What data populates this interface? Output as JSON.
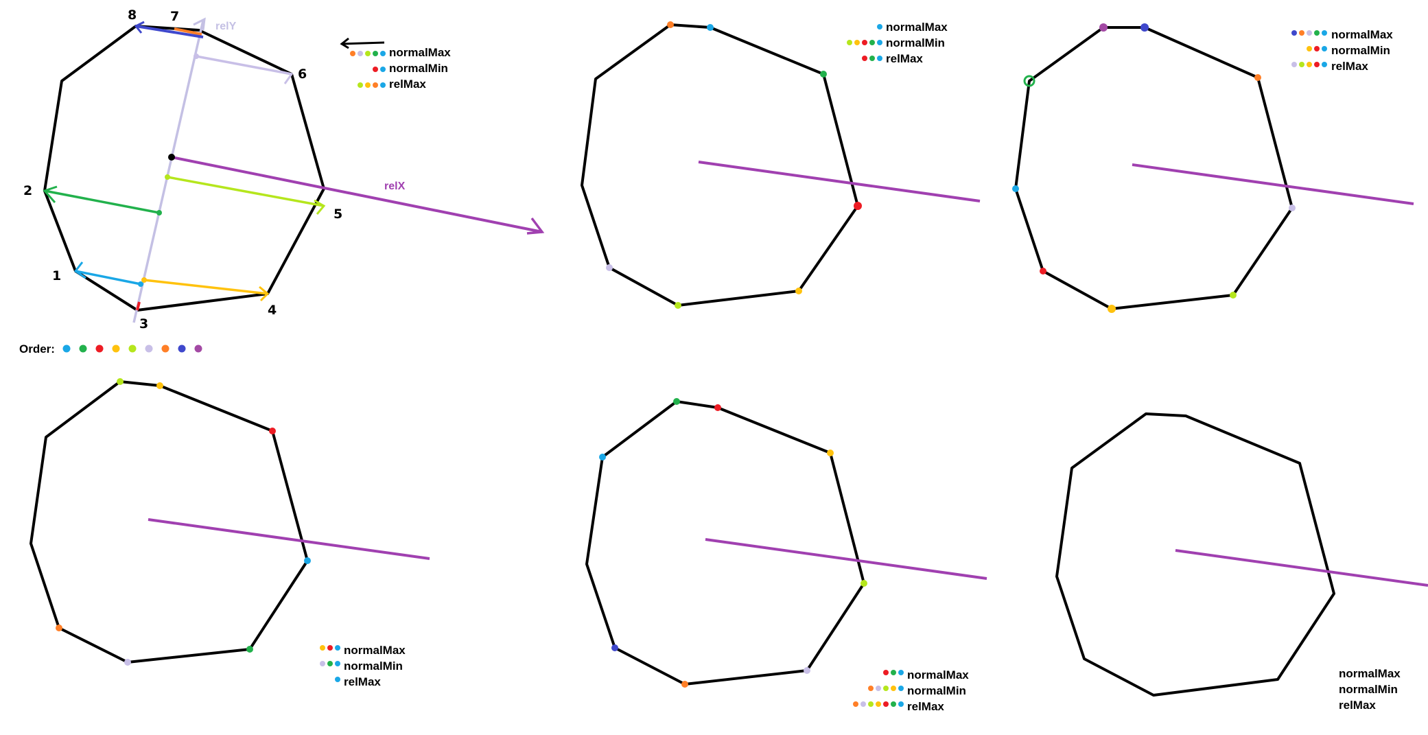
{
  "colors": {
    "outline": "#000000",
    "relX": "#a040b0",
    "relY": "#c4c0e4",
    "c1_cyan": "#1aa7e6",
    "c2_green": "#22b14c",
    "c3_red": "#ed1c24",
    "c4_yellow": "#ffc20e",
    "c5_lime": "#b5e61d",
    "c6_lavender": "#c8bfe7",
    "c7_orange": "#ff7f27",
    "c8_blue": "#3f48cc",
    "c9_purple": "#a349a4"
  },
  "order": {
    "label": "Order:",
    "swatches": [
      "c1_cyan",
      "c2_green",
      "c3_red",
      "c4_yellow",
      "c5_lime",
      "c6_lavender",
      "c7_orange",
      "c8_blue",
      "c9_purple"
    ]
  },
  "panels": [
    {
      "id": "p1",
      "vertex_numbers": [
        "1",
        "2",
        "3",
        "4",
        "5",
        "6",
        "7",
        "8"
      ],
      "axis_labels": {
        "relX": "relX",
        "relY": "relY"
      },
      "legend": [
        {
          "label": "normalMax",
          "swatches": [
            "c7_orange",
            "c6_lavender",
            "c5_lime",
            "c2_green",
            "c1_cyan"
          ]
        },
        {
          "label": "normalMin",
          "swatches": [
            "c3_red",
            "c1_cyan"
          ]
        },
        {
          "label": "relMax",
          "swatches": [
            "c5_lime",
            "c4_yellow",
            "c7_orange",
            "c1_cyan"
          ]
        }
      ]
    },
    {
      "id": "p2",
      "legend": [
        {
          "label": "normalMax",
          "swatches": [
            "c1_cyan"
          ]
        },
        {
          "label": "normalMin",
          "swatches": [
            "c5_lime",
            "c4_yellow",
            "c3_red",
            "c2_green",
            "c1_cyan"
          ]
        },
        {
          "label": "relMax",
          "swatches": [
            "c3_red",
            "c2_green",
            "c1_cyan"
          ]
        }
      ]
    },
    {
      "id": "p3",
      "legend": [
        {
          "label": "normalMax",
          "swatches": [
            "c8_blue",
            "c7_orange",
            "c6_lavender",
            "c2_green",
            "c1_cyan"
          ]
        },
        {
          "label": "normalMin",
          "swatches": [
            "c4_yellow",
            "c3_red",
            "c1_cyan"
          ]
        },
        {
          "label": "relMax",
          "swatches": [
            "c6_lavender",
            "c5_lime",
            "c4_yellow",
            "c3_red",
            "c1_cyan"
          ]
        }
      ]
    },
    {
      "id": "p4",
      "legend": [
        {
          "label": "normalMax",
          "swatches": [
            "c4_yellow",
            "c3_red",
            "c1_cyan"
          ]
        },
        {
          "label": "normalMin",
          "swatches": [
            "c6_lavender",
            "c2_green",
            "c1_cyan"
          ]
        },
        {
          "label": "relMax",
          "swatches": [
            "c1_cyan"
          ]
        }
      ]
    },
    {
      "id": "p5",
      "legend": [
        {
          "label": "normalMax",
          "swatches": [
            "c3_red",
            "c2_green",
            "c1_cyan"
          ]
        },
        {
          "label": "normalMin",
          "swatches": [
            "c7_orange",
            "c6_lavender",
            "c5_lime",
            "c4_yellow",
            "c1_cyan"
          ]
        },
        {
          "label": "relMax",
          "swatches": [
            "c7_orange",
            "c6_lavender",
            "c5_lime",
            "c4_yellow",
            "c3_red",
            "c2_green",
            "c1_cyan"
          ]
        }
      ]
    },
    {
      "id": "p6",
      "legend": [
        {
          "label": "normalMax",
          "swatches": []
        },
        {
          "label": "normalMin",
          "swatches": []
        },
        {
          "label": "relMax",
          "swatches": []
        }
      ]
    }
  ]
}
